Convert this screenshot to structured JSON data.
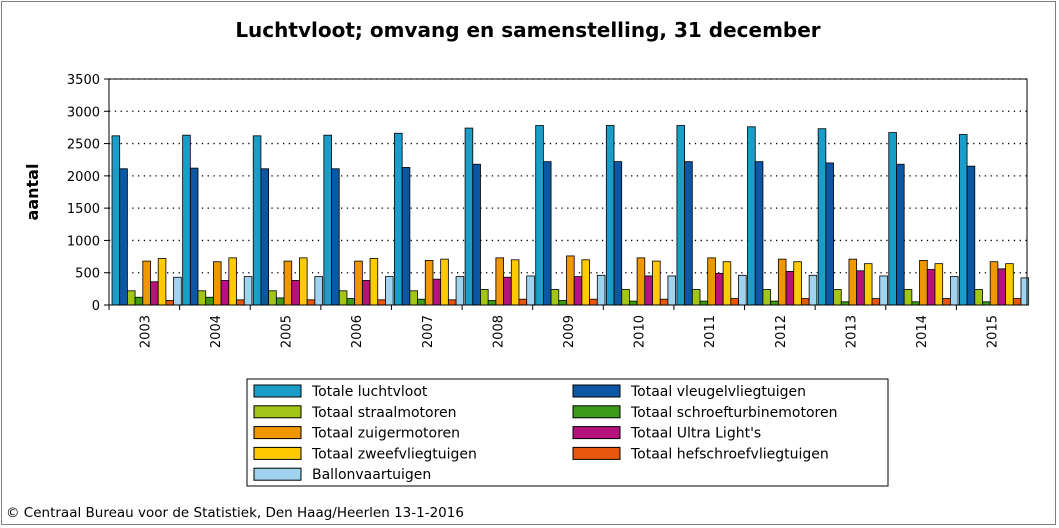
{
  "chart_data": {
    "type": "bar",
    "title": "Luchtvloot; omvang en samenstelling, 31 december",
    "ylabel": "aantal",
    "xlabel": "",
    "ylim": [
      0,
      3500
    ],
    "yticks": [
      0,
      500,
      1000,
      1500,
      2000,
      2500,
      3000,
      3500
    ],
    "grid": "horizontal dotted",
    "legend_placement": "bottom",
    "categories": [
      "2003",
      "2004",
      "2005",
      "2006",
      "2007",
      "2008",
      "2009",
      "2010",
      "2011",
      "2012",
      "2013",
      "2014",
      "2015"
    ],
    "series": [
      {
        "name": "Totale luchtvloot",
        "color": "#1a9ec9",
        "values": [
          2620,
          2630,
          2620,
          2630,
          2660,
          2740,
          2780,
          2780,
          2780,
          2760,
          2730,
          2670,
          2640
        ]
      },
      {
        "name": "Totaal vleugelvliegtuigen",
        "color": "#0b57a4",
        "values": [
          2110,
          2120,
          2110,
          2110,
          2130,
          2180,
          2220,
          2220,
          2220,
          2220,
          2200,
          2180,
          2150
        ]
      },
      {
        "name": "Totaal straalmotoren",
        "color": "#a2c617",
        "values": [
          220,
          220,
          220,
          220,
          220,
          240,
          240,
          240,
          240,
          240,
          240,
          240,
          240
        ]
      },
      {
        "name": "Totaal schroefturbinemotoren",
        "color": "#3b9b19",
        "values": [
          120,
          120,
          110,
          100,
          90,
          70,
          70,
          60,
          60,
          60,
          50,
          50,
          50
        ]
      },
      {
        "name": "Totaal zuigermotoren",
        "color": "#f09700",
        "values": [
          680,
          670,
          680,
          680,
          690,
          730,
          760,
          730,
          730,
          710,
          710,
          690,
          670
        ]
      },
      {
        "name": "Totaal Ultra Light's",
        "color": "#b5137b",
        "values": [
          360,
          380,
          380,
          380,
          400,
          430,
          440,
          450,
          490,
          520,
          530,
          550,
          560
        ]
      },
      {
        "name": "Totaal zweefvliegtuigen",
        "color": "#ffcb00",
        "values": [
          720,
          730,
          730,
          720,
          710,
          700,
          700,
          680,
          670,
          670,
          640,
          640,
          640
        ]
      },
      {
        "name": "Totaal hefschroefvliegtuigen",
        "color": "#e6570d",
        "values": [
          70,
          80,
          80,
          80,
          80,
          90,
          90,
          90,
          100,
          100,
          100,
          100,
          100
        ]
      },
      {
        "name": "Ballonvaartuigen",
        "color": "#9fd3ef",
        "values": [
          430,
          440,
          440,
          440,
          440,
          450,
          460,
          450,
          460,
          460,
          450,
          440,
          420
        ]
      }
    ]
  },
  "footer": {
    "text": "© Centraal Bureau voor de Statistiek, Den Haag/Heerlen 13-1-2016"
  }
}
